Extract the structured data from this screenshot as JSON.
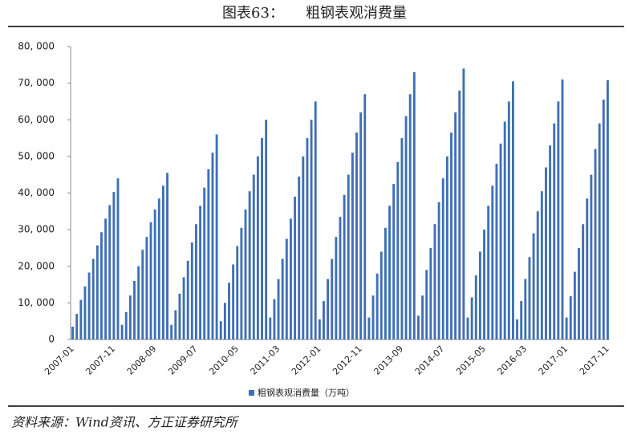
{
  "chart_data": {
    "type": "bar",
    "title": "图表63：　　粗钢表观消费量",
    "legend": "粗钢表观消费量（万吨）",
    "source": "资料来源：Wind资讯、方正证券研究所",
    "color": "#3f6fb5",
    "categories": [
      "2007-01",
      null,
      null,
      null,
      null,
      null,
      null,
      null,
      null,
      null,
      "2007-11",
      null,
      null,
      null,
      null,
      null,
      null,
      null,
      null,
      null,
      "2008-09",
      null,
      null,
      null,
      null,
      null,
      null,
      null,
      null,
      null,
      "2009-07",
      null,
      null,
      null,
      null,
      null,
      null,
      null,
      null,
      null,
      "2010-05",
      null,
      null,
      null,
      null,
      null,
      null,
      null,
      null,
      null,
      "2011-03",
      null,
      null,
      null,
      null,
      null,
      null,
      null,
      null,
      null,
      "2012-01",
      null,
      null,
      null,
      null,
      null,
      null,
      null,
      null,
      null,
      "2012-11",
      null,
      null,
      null,
      null,
      null,
      null,
      null,
      null,
      null,
      "2013-09",
      null,
      null,
      null,
      null,
      null,
      null,
      null,
      null,
      null,
      "2014-07",
      null,
      null,
      null,
      null,
      null,
      null,
      null,
      null,
      null,
      "2015-05",
      null,
      null,
      null,
      null,
      null,
      null,
      null,
      null,
      null,
      "2016-03",
      null,
      null,
      null,
      null,
      null,
      null,
      null,
      null,
      null,
      "2017-01",
      null,
      null,
      null,
      null,
      null,
      null,
      null,
      null,
      null,
      "2017-11"
    ],
    "values": [
      3500,
      7000,
      10800,
      14500,
      18300,
      22000,
      25700,
      29300,
      33000,
      36700,
      40300,
      44000,
      4000,
      7500,
      12000,
      16000,
      20000,
      24500,
      28000,
      32000,
      35500,
      38500,
      42000,
      45500,
      4000,
      8000,
      12500,
      17000,
      21500,
      26500,
      31500,
      36500,
      41500,
      46500,
      51000,
      56000,
      5000,
      10000,
      15500,
      20500,
      25500,
      30500,
      35500,
      40500,
      45000,
      50000,
      55000,
      60000,
      6000,
      11000,
      16500,
      22000,
      27500,
      33000,
      39000,
      44500,
      50000,
      55000,
      60000,
      65000,
      5500,
      10500,
      16500,
      22000,
      28000,
      33500,
      39500,
      45000,
      51000,
      56500,
      62000,
      67000,
      6000,
      12000,
      18000,
      24000,
      30500,
      36500,
      42500,
      48500,
      55000,
      61000,
      67000,
      73000,
      6500,
      12000,
      19000,
      25000,
      31500,
      37500,
      44000,
      50000,
      56500,
      62000,
      68000,
      74000,
      6000,
      11500,
      17500,
      24000,
      30000,
      36500,
      42000,
      48000,
      53500,
      59500,
      65000,
      70500,
      5500,
      10500,
      16500,
      22500,
      29000,
      35000,
      40500,
      47000,
      53000,
      59000,
      65000,
      71000,
      6000,
      11800,
      18500,
      25000,
      31500,
      38500,
      45000,
      52000,
      59000,
      65500,
      70800
    ],
    "ylim": [
      0,
      80000
    ],
    "yticks": [
      0,
      {
        "value": 10000,
        "label": "10, 000"
      },
      {
        "value": 20000,
        "label": "20, 000"
      },
      {
        "value": 30000,
        "label": "30, 000"
      },
      {
        "value": 40000,
        "label": "40, 000"
      },
      {
        "value": 50000,
        "label": "50, 000"
      },
      {
        "value": 60000,
        "label": "60, 000"
      },
      {
        "value": 70000,
        "label": "70, 000"
      },
      {
        "value": 80000,
        "label": "80, 000"
      }
    ]
  }
}
